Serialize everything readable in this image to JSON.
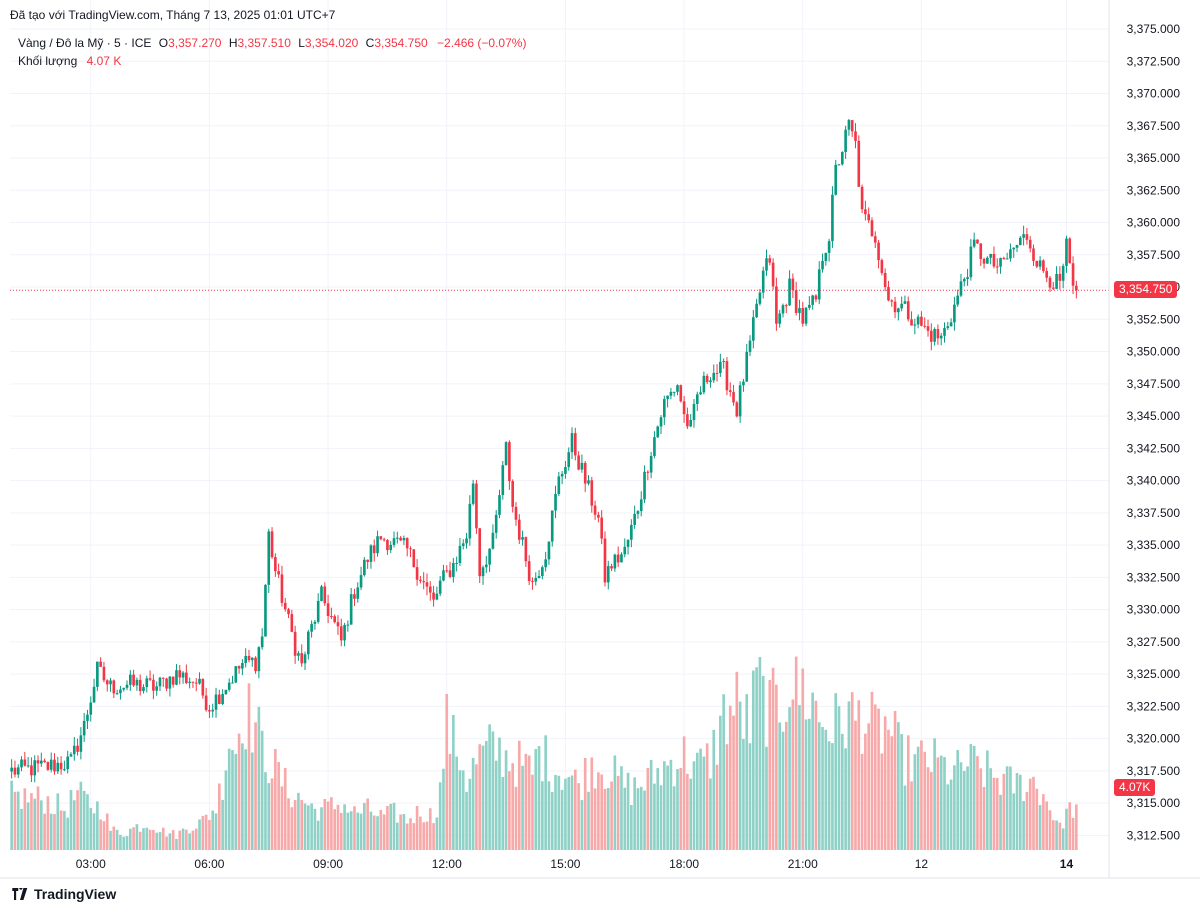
{
  "header": {
    "published": "Đã tạo với TradingView.com, Tháng 7 13, 2025 01:01 UTC+7",
    "symbol": "Vàng / Đô la Mỹ · 5 · ICE",
    "o_label": "O",
    "o_value": "3,357.270",
    "h_label": "H",
    "h_value": "3,357.510",
    "l_label": "L",
    "l_value": "3,354.020",
    "c_label": "C",
    "c_value": "3,354.750",
    "change": "−2.466 (−0.07%)",
    "volume_label": "Khối lượng",
    "volume_value": "4.07 K"
  },
  "badges": {
    "price": "3,354.750",
    "volume": "4.07K"
  },
  "footer": {
    "brand": "TradingView"
  },
  "colors": {
    "up": "#089981",
    "down": "#f23645",
    "vol_up": "#8fd1c7",
    "vol_down": "#f7a9a9",
    "grid": "#f0f3fa"
  },
  "chart_data": {
    "type": "candlestick",
    "symbol": "Vàng / Đô la Mỹ",
    "interval": "5",
    "y_axis": {
      "min": 3311.0,
      "max": 3375.0,
      "ticks": [
        3312.5,
        3315.0,
        3317.5,
        3320.0,
        3322.5,
        3325.0,
        3327.5,
        3330.0,
        3332.5,
        3335.0,
        3337.5,
        3340.0,
        3342.5,
        3345.0,
        3347.5,
        3350.0,
        3352.5,
        3355.0,
        3357.5,
        3360.0,
        3362.5,
        3365.0,
        3367.5,
        3370.0,
        3372.5,
        3375.0
      ],
      "tick_labels": [
        "3,312.500",
        "3,315.000",
        "3,317.500",
        "3,320.000",
        "3,322.500",
        "3,325.000",
        "3,327.500",
        "3,330.000",
        "3,332.500",
        "3,335.000",
        "3,337.500",
        "3,340.000",
        "3,342.500",
        "3,345.000",
        "3,347.500",
        "3,350.000",
        "3,352.500",
        "3,355.000",
        "3,357.500",
        "3,360.000",
        "3,362.500",
        "3,365.000",
        "3,367.500",
        "3,370.000",
        "3,372.500",
        "3,375.000"
      ]
    },
    "x_axis": {
      "labels": [
        "03:00",
        "06:00",
        "09:00",
        "12:00",
        "15:00",
        "18:00",
        "21:00",
        "12",
        "14"
      ],
      "label_bars": [
        24,
        60,
        96,
        132,
        168,
        204,
        240,
        276,
        320
      ]
    },
    "last_price": 3354.75,
    "last_volume": "4.07K",
    "grid": true,
    "close_path": [
      [
        0,
        3317.5
      ],
      [
        10,
        3317.8
      ],
      [
        18,
        3318.2
      ],
      [
        22,
        3321.0
      ],
      [
        26,
        3325.3
      ],
      [
        30,
        3324.0
      ],
      [
        36,
        3324.2
      ],
      [
        44,
        3324.0
      ],
      [
        50,
        3325.0
      ],
      [
        56,
        3324.4
      ],
      [
        60,
        3322.5
      ],
      [
        64,
        3323.8
      ],
      [
        70,
        3325.8
      ],
      [
        74,
        3326.0
      ],
      [
        76,
        3328.0
      ],
      [
        78,
        3335.8
      ],
      [
        80,
        3333.0
      ],
      [
        84,
        3329.0
      ],
      [
        86,
        3327.2
      ],
      [
        88,
        3325.6
      ],
      [
        90,
        3327.8
      ],
      [
        94,
        3331.0
      ],
      [
        96,
        3330.0
      ],
      [
        100,
        3327.5
      ],
      [
        104,
        3331.5
      ],
      [
        108,
        3334.0
      ],
      [
        112,
        3335.6
      ],
      [
        116,
        3335.2
      ],
      [
        120,
        3334.6
      ],
      [
        124,
        3332.6
      ],
      [
        128,
        3330.5
      ],
      [
        130,
        3332.0
      ],
      [
        134,
        3333.5
      ],
      [
        138,
        3335.8
      ],
      [
        140,
        3340.0
      ],
      [
        142,
        3333.0
      ],
      [
        146,
        3335.2
      ],
      [
        150,
        3342.5
      ],
      [
        152,
        3338.0
      ],
      [
        156,
        3334.0
      ],
      [
        158,
        3332.0
      ],
      [
        162,
        3334.5
      ],
      [
        166,
        3340.0
      ],
      [
        170,
        3343.0
      ],
      [
        172,
        3341.5
      ],
      [
        176,
        3338.5
      ],
      [
        178,
        3337.0
      ],
      [
        180,
        3332.5
      ],
      [
        182,
        3333.5
      ],
      [
        186,
        3334.5
      ],
      [
        190,
        3338.0
      ],
      [
        194,
        3342.5
      ],
      [
        198,
        3346.0
      ],
      [
        202,
        3347.5
      ],
      [
        204,
        3345.0
      ],
      [
        206,
        3344.0
      ],
      [
        208,
        3346.5
      ],
      [
        212,
        3348.5
      ],
      [
        216,
        3348.5
      ],
      [
        220,
        3345.5
      ],
      [
        224,
        3350.5
      ],
      [
        228,
        3356.0
      ],
      [
        230,
        3357.2
      ],
      [
        232,
        3352.0
      ],
      [
        236,
        3355.0
      ],
      [
        240,
        3352.5
      ],
      [
        244,
        3354.0
      ],
      [
        246,
        3357.5
      ],
      [
        248,
        3359.0
      ],
      [
        250,
        3364.0
      ],
      [
        254,
        3367.5
      ],
      [
        256,
        3366.0
      ],
      [
        258,
        3360.5
      ],
      [
        262,
        3359.0
      ],
      [
        266,
        3354.0
      ],
      [
        270,
        3353.5
      ],
      [
        274,
        3352.5
      ],
      [
        278,
        3351.5
      ],
      [
        282,
        3351.0
      ],
      [
        286,
        3353.5
      ],
      [
        290,
        3356.5
      ],
      [
        292,
        3358.2
      ],
      [
        296,
        3357.0
      ],
      [
        300,
        3356.5
      ],
      [
        304,
        3358.0
      ],
      [
        308,
        3359.0
      ],
      [
        312,
        3356.5
      ],
      [
        316,
        3355.5
      ],
      [
        318,
        3355.0
      ],
      [
        320,
        3358.0
      ],
      [
        322,
        3354.75
      ]
    ],
    "volume_profile": [
      [
        0,
        3.2
      ],
      [
        10,
        3.0
      ],
      [
        16,
        2.4
      ],
      [
        20,
        3.3
      ],
      [
        24,
        2.7
      ],
      [
        28,
        2.4
      ],
      [
        30,
        1.2
      ],
      [
        34,
        1.0
      ],
      [
        38,
        1.4
      ],
      [
        42,
        1.6
      ],
      [
        46,
        1.1
      ],
      [
        50,
        0.9
      ],
      [
        54,
        1.4
      ],
      [
        58,
        1.7
      ],
      [
        62,
        2.6
      ],
      [
        64,
        4.2
      ],
      [
        66,
        6.8
      ],
      [
        68,
        6.0
      ],
      [
        70,
        8.5
      ],
      [
        72,
        8.0
      ],
      [
        74,
        7.5
      ],
      [
        76,
        6.0
      ],
      [
        80,
        4.8
      ],
      [
        84,
        3.5
      ],
      [
        88,
        3.0
      ],
      [
        92,
        2.4
      ],
      [
        96,
        2.5
      ],
      [
        100,
        2.8
      ],
      [
        104,
        2.2
      ],
      [
        108,
        2.4
      ],
      [
        112,
        2.0
      ],
      [
        116,
        2.2
      ],
      [
        120,
        1.8
      ],
      [
        124,
        2.3
      ],
      [
        128,
        2.0
      ],
      [
        130,
        3.5
      ],
      [
        132,
        7.5
      ],
      [
        134,
        6.3
      ],
      [
        136,
        5.7
      ],
      [
        138,
        4.2
      ],
      [
        142,
        5.5
      ],
      [
        146,
        6.1
      ],
      [
        150,
        5.6
      ],
      [
        154,
        5.1
      ],
      [
        158,
        4.6
      ],
      [
        160,
        5.9
      ],
      [
        164,
        4.9
      ],
      [
        168,
        4.6
      ],
      [
        172,
        3.9
      ],
      [
        176,
        5.2
      ],
      [
        180,
        4.9
      ],
      [
        184,
        4.2
      ],
      [
        188,
        3.6
      ],
      [
        192,
        4.0
      ],
      [
        196,
        4.6
      ],
      [
        200,
        5.2
      ],
      [
        204,
        5.6
      ],
      [
        208,
        4.9
      ],
      [
        212,
        5.4
      ],
      [
        216,
        7.9
      ],
      [
        220,
        8.6
      ],
      [
        224,
        7.3
      ],
      [
        226,
        9.9
      ],
      [
        230,
        8.2
      ],
      [
        234,
        8.8
      ],
      [
        236,
        10.4
      ],
      [
        238,
        9.3
      ],
      [
        240,
        9.6
      ],
      [
        244,
        8.4
      ],
      [
        246,
        7.6
      ],
      [
        250,
        7.4
      ],
      [
        254,
        8.0
      ],
      [
        256,
        7.7
      ],
      [
        258,
        8.1
      ],
      [
        262,
        7.0
      ],
      [
        266,
        7.3
      ],
      [
        270,
        5.5
      ],
      [
        274,
        5.2
      ],
      [
        278,
        5.4
      ],
      [
        282,
        5.0
      ],
      [
        286,
        4.5
      ],
      [
        290,
        5.2
      ],
      [
        294,
        4.8
      ],
      [
        298,
        4.4
      ],
      [
        302,
        4.0
      ],
      [
        306,
        3.9
      ],
      [
        310,
        4.1
      ],
      [
        314,
        3.0
      ],
      [
        318,
        1.3
      ],
      [
        320,
        2.2
      ],
      [
        322,
        2.5
      ]
    ],
    "volume_range": [
      0,
      12.5
    ]
  }
}
